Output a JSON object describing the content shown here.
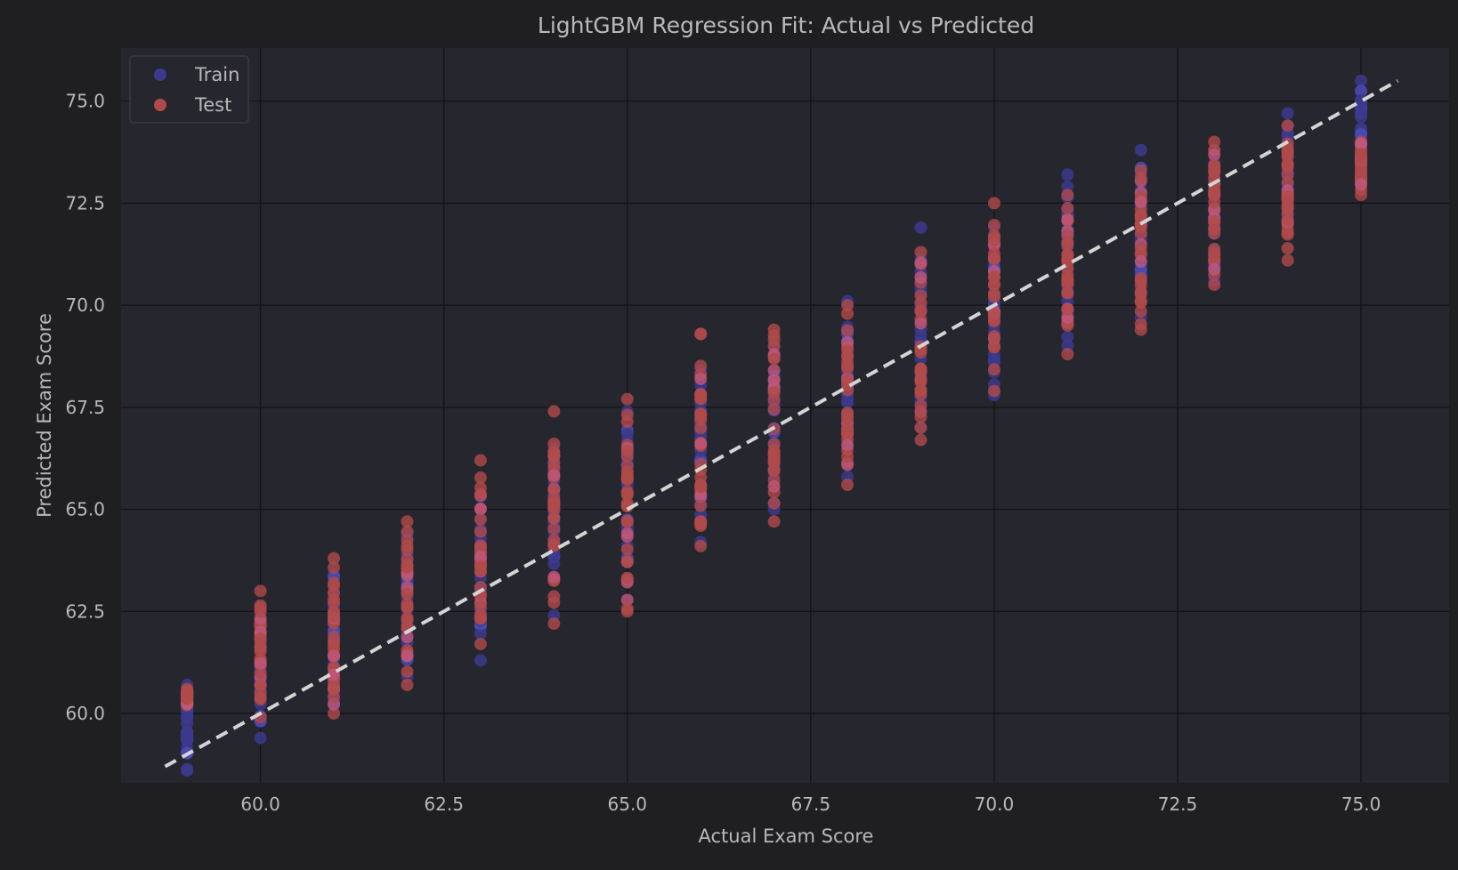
{
  "chart_data": {
    "type": "scatter",
    "title": "LightGBM Regression Fit: Actual vs Predicted",
    "xlabel": "Actual Exam Score",
    "ylabel": "Predicted Exam Score",
    "xlim": [
      58.1,
      76.2
    ],
    "ylim": [
      58.3,
      76.3
    ],
    "xticks": [
      "60.0",
      "62.5",
      "65.0",
      "67.5",
      "70.0",
      "72.5",
      "75.0"
    ],
    "yticks": [
      "60.0",
      "62.5",
      "65.0",
      "67.5",
      "70.0",
      "72.5",
      "75.0"
    ],
    "grid": true,
    "legend_position": "top-left",
    "reference_line": {
      "style": "dashed",
      "color": "#d4d4d4",
      "from": [
        58.7,
        58.7
      ],
      "to": [
        75.5,
        75.5
      ]
    },
    "series": [
      {
        "name": "Train",
        "color": "#3b3a8c",
        "highlight_color": "#4b4bb8",
        "groups": [
          {
            "x": 59,
            "ymin": 58.6,
            "ymax": 60.7
          },
          {
            "x": 60,
            "ymin": 59.4,
            "ymax": 62.2
          },
          {
            "x": 61,
            "ymin": 60.2,
            "ymax": 63.4
          },
          {
            "x": 62,
            "ymin": 60.9,
            "ymax": 64.4
          },
          {
            "x": 63,
            "ymin": 61.3,
            "ymax": 65.3
          },
          {
            "x": 64,
            "ymin": 62.4,
            "ymax": 66.5
          },
          {
            "x": 65,
            "ymin": 63.3,
            "ymax": 67.4
          },
          {
            "x": 66,
            "ymin": 64.2,
            "ymax": 68.4
          },
          {
            "x": 67,
            "ymin": 65.0,
            "ymax": 69.0
          },
          {
            "x": 68,
            "ymin": 65.8,
            "ymax": 70.1
          },
          {
            "x": 69,
            "ymin": 67.0,
            "ymax": 71.9
          },
          {
            "x": 70,
            "ymin": 67.8,
            "ymax": 71.9
          },
          {
            "x": 71,
            "ymin": 69.0,
            "ymax": 73.2
          },
          {
            "x": 72,
            "ymin": 69.7,
            "ymax": 73.8
          },
          {
            "x": 73,
            "ymin": 70.6,
            "ymax": 73.8
          },
          {
            "x": 74,
            "ymin": 72.1,
            "ymax": 74.7
          },
          {
            "x": 75,
            "ymin": 73.2,
            "ymax": 75.5
          }
        ]
      },
      {
        "name": "Test",
        "color": "#b04a4a",
        "highlight_color": "#c0587a",
        "groups": [
          {
            "x": 59,
            "ymin": 60.2,
            "ymax": 60.6
          },
          {
            "x": 60,
            "ymin": 59.9,
            "ymax": 63.0
          },
          {
            "x": 61,
            "ymin": 60.0,
            "ymax": 63.8
          },
          {
            "x": 62,
            "ymin": 60.7,
            "ymax": 64.7
          },
          {
            "x": 63,
            "ymin": 61.7,
            "ymax": 66.2
          },
          {
            "x": 64,
            "ymin": 62.2,
            "ymax": 67.4
          },
          {
            "x": 65,
            "ymin": 62.5,
            "ymax": 67.7
          },
          {
            "x": 66,
            "ymin": 64.1,
            "ymax": 69.3
          },
          {
            "x": 67,
            "ymin": 64.7,
            "ymax": 69.4
          },
          {
            "x": 68,
            "ymin": 65.6,
            "ymax": 70.0
          },
          {
            "x": 69,
            "ymin": 66.7,
            "ymax": 71.3
          },
          {
            "x": 70,
            "ymin": 67.9,
            "ymax": 72.5
          },
          {
            "x": 71,
            "ymin": 68.8,
            "ymax": 72.7
          },
          {
            "x": 72,
            "ymin": 69.4,
            "ymax": 73.3
          },
          {
            "x": 73,
            "ymin": 70.5,
            "ymax": 74.0
          },
          {
            "x": 74,
            "ymin": 71.1,
            "ymax": 74.4
          },
          {
            "x": 75,
            "ymin": 72.7,
            "ymax": 74.0
          }
        ]
      }
    ]
  },
  "colors": {
    "figure_background": "#1f1f22",
    "plot_background": "#26262e",
    "grid": "#141418",
    "text": "#b8b8b8"
  }
}
